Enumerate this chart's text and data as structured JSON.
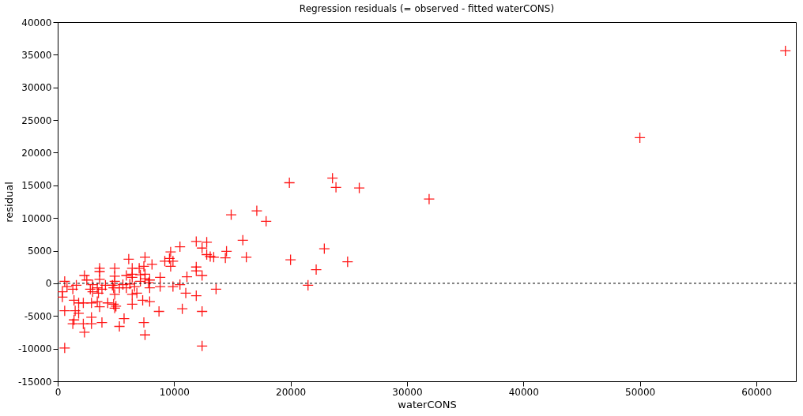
{
  "chart_data": {
    "type": "scatter",
    "title": "Regression residuals (= observed - fitted waterCONS)",
    "xlabel": "waterCONS",
    "ylabel": "residual",
    "x": [
      11900,
      12800,
      10500,
      12400,
      9700,
      12800,
      13100,
      6100,
      7500,
      9600,
      9200,
      9900,
      8100,
      3600,
      4900,
      6400,
      7000,
      7400,
      9700,
      11900,
      11900,
      2300,
      3600,
      4900,
      5900,
      6400,
      7100,
      7500,
      8800,
      11100,
      12400,
      600,
      2500,
      3600,
      4900,
      6400,
      7500,
      7900,
      1600,
      3000,
      4100,
      4700,
      5600,
      6200,
      7100,
      7800,
      8800,
      9900,
      10500,
      800,
      1300,
      2800,
      3400,
      3800,
      4800,
      5300,
      5900,
      6600,
      7900,
      400,
      3000,
      3500,
      4900,
      6400,
      6800,
      11000,
      11900,
      400,
      1400,
      1800,
      2200,
      2900,
      3400,
      4300,
      6400,
      7300,
      7900,
      3600,
      4800,
      5000,
      600,
      1500,
      1800,
      4900,
      8700,
      10700,
      12400,
      1400,
      2900,
      3800,
      5700,
      7400,
      1300,
      2200,
      2900,
      5300,
      2300,
      7500,
      600,
      12400,
      14900,
      17100,
      17900,
      15900,
      14500,
      16200,
      14400,
      13400,
      20000,
      22900,
      22200,
      24900,
      21500,
      13600,
      19900,
      23600,
      23900,
      25900,
      31900,
      62500,
      50000
    ],
    "values": [
      6400,
      6300,
      5600,
      5400,
      4800,
      4400,
      4100,
      3700,
      4000,
      3800,
      3400,
      3400,
      2900,
      2300,
      2300,
      2300,
      2300,
      2600,
      2600,
      2500,
      1900,
      1200,
      1800,
      1100,
      1200,
      1400,
      1300,
      1400,
      900,
      1000,
      1200,
      300,
      500,
      600,
      300,
      900,
      700,
      500,
      -300,
      -200,
      -300,
      -300,
      -200,
      -100,
      300,
      100,
      -500,
      -500,
      -200,
      -500,
      -900,
      -900,
      -700,
      -900,
      -700,
      -700,
      -700,
      -500,
      -700,
      -1300,
      -1300,
      -1500,
      -1700,
      -1700,
      -1500,
      -1500,
      -1900,
      -2100,
      -2600,
      -3000,
      -3000,
      -3000,
      -2800,
      -3000,
      -3200,
      -2600,
      -2800,
      -3600,
      -3200,
      -3500,
      -4200,
      -4200,
      -4600,
      -3800,
      -4300,
      -3900,
      -4300,
      -5600,
      -5200,
      -6000,
      -5400,
      -6000,
      -6200,
      -6200,
      -6200,
      -6600,
      -7500,
      -7900,
      -9900,
      -9600,
      10500,
      11100,
      9500,
      6600,
      4900,
      4000,
      3900,
      4000,
      3600,
      5300,
      2100,
      3300,
      -300,
      -900,
      15400,
      16100,
      14700,
      14600,
      12900,
      35600,
      22300
    ],
    "color": "#ff0000",
    "marker": "cross",
    "xlim": [
      0,
      63400
    ],
    "ylim": [
      -15000,
      40000
    ],
    "xticks": [
      0,
      10000,
      20000,
      30000,
      40000,
      50000,
      60000
    ],
    "yticks": [
      -15000,
      -10000,
      -5000,
      0,
      5000,
      10000,
      15000,
      20000,
      25000,
      30000,
      35000,
      40000
    ],
    "ref_lines": [
      {
        "axis": "y",
        "value": 0,
        "color": "#000000",
        "line_style": "dotted"
      }
    ],
    "grid": false
  }
}
